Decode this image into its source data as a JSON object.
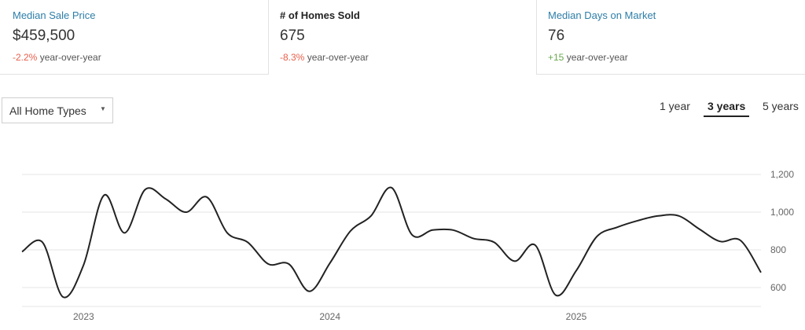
{
  "stats": [
    {
      "label": "Median Sale Price",
      "value": "$459,500",
      "change": "-2.2%",
      "change_suffix": " year-over-year",
      "change_color": "#e8604c"
    },
    {
      "label": "# of Homes Sold",
      "value": "675",
      "change": "-8.3%",
      "change_suffix": " year-over-year",
      "change_color": "#e8604c"
    },
    {
      "label": "Median Days on Market",
      "value": "76",
      "change": "+15",
      "change_suffix": " year-over-year",
      "change_color": "#6aa84f"
    }
  ],
  "filter": {
    "label": "All Home Types"
  },
  "range_tabs": [
    {
      "label": "1 year",
      "active": false
    },
    {
      "label": "3 years",
      "active": true
    },
    {
      "label": "5 years",
      "active": false
    }
  ],
  "chart_data": {
    "type": "line",
    "title": "",
    "xlabel": "",
    "ylabel": "",
    "x_ticks": [
      "2023",
      "2024",
      "2025"
    ],
    "y_ticks": [
      "600",
      "800",
      "1,000",
      "1,200"
    ],
    "ylim": [
      500,
      1250
    ],
    "grid": true,
    "line_color": "#222222",
    "series": [
      {
        "x": [
          "2022-10",
          "2022-11",
          "2022-12",
          "2023-01",
          "2023-02",
          "2023-03",
          "2023-04",
          "2023-05",
          "2023-06",
          "2023-07",
          "2023-08",
          "2023-09",
          "2023-10",
          "2023-11",
          "2023-12",
          "2024-01",
          "2024-02",
          "2024-03",
          "2024-04",
          "2024-05",
          "2024-06",
          "2024-07",
          "2024-08",
          "2024-09",
          "2024-10",
          "2024-11",
          "2024-12",
          "2025-01",
          "2025-02",
          "2025-03",
          "2025-04",
          "2025-05",
          "2025-06",
          "2025-07",
          "2025-08",
          "2025-09",
          "2025-10"
        ],
        "values": [
          790,
          840,
          550,
          720,
          1090,
          890,
          1120,
          1070,
          1000,
          1080,
          890,
          840,
          725,
          725,
          580,
          730,
          900,
          980,
          1130,
          880,
          905,
          905,
          860,
          840,
          740,
          825,
          560,
          690,
          870,
          920,
          955,
          980,
          980,
          910,
          845,
          850,
          680
        ]
      }
    ]
  }
}
